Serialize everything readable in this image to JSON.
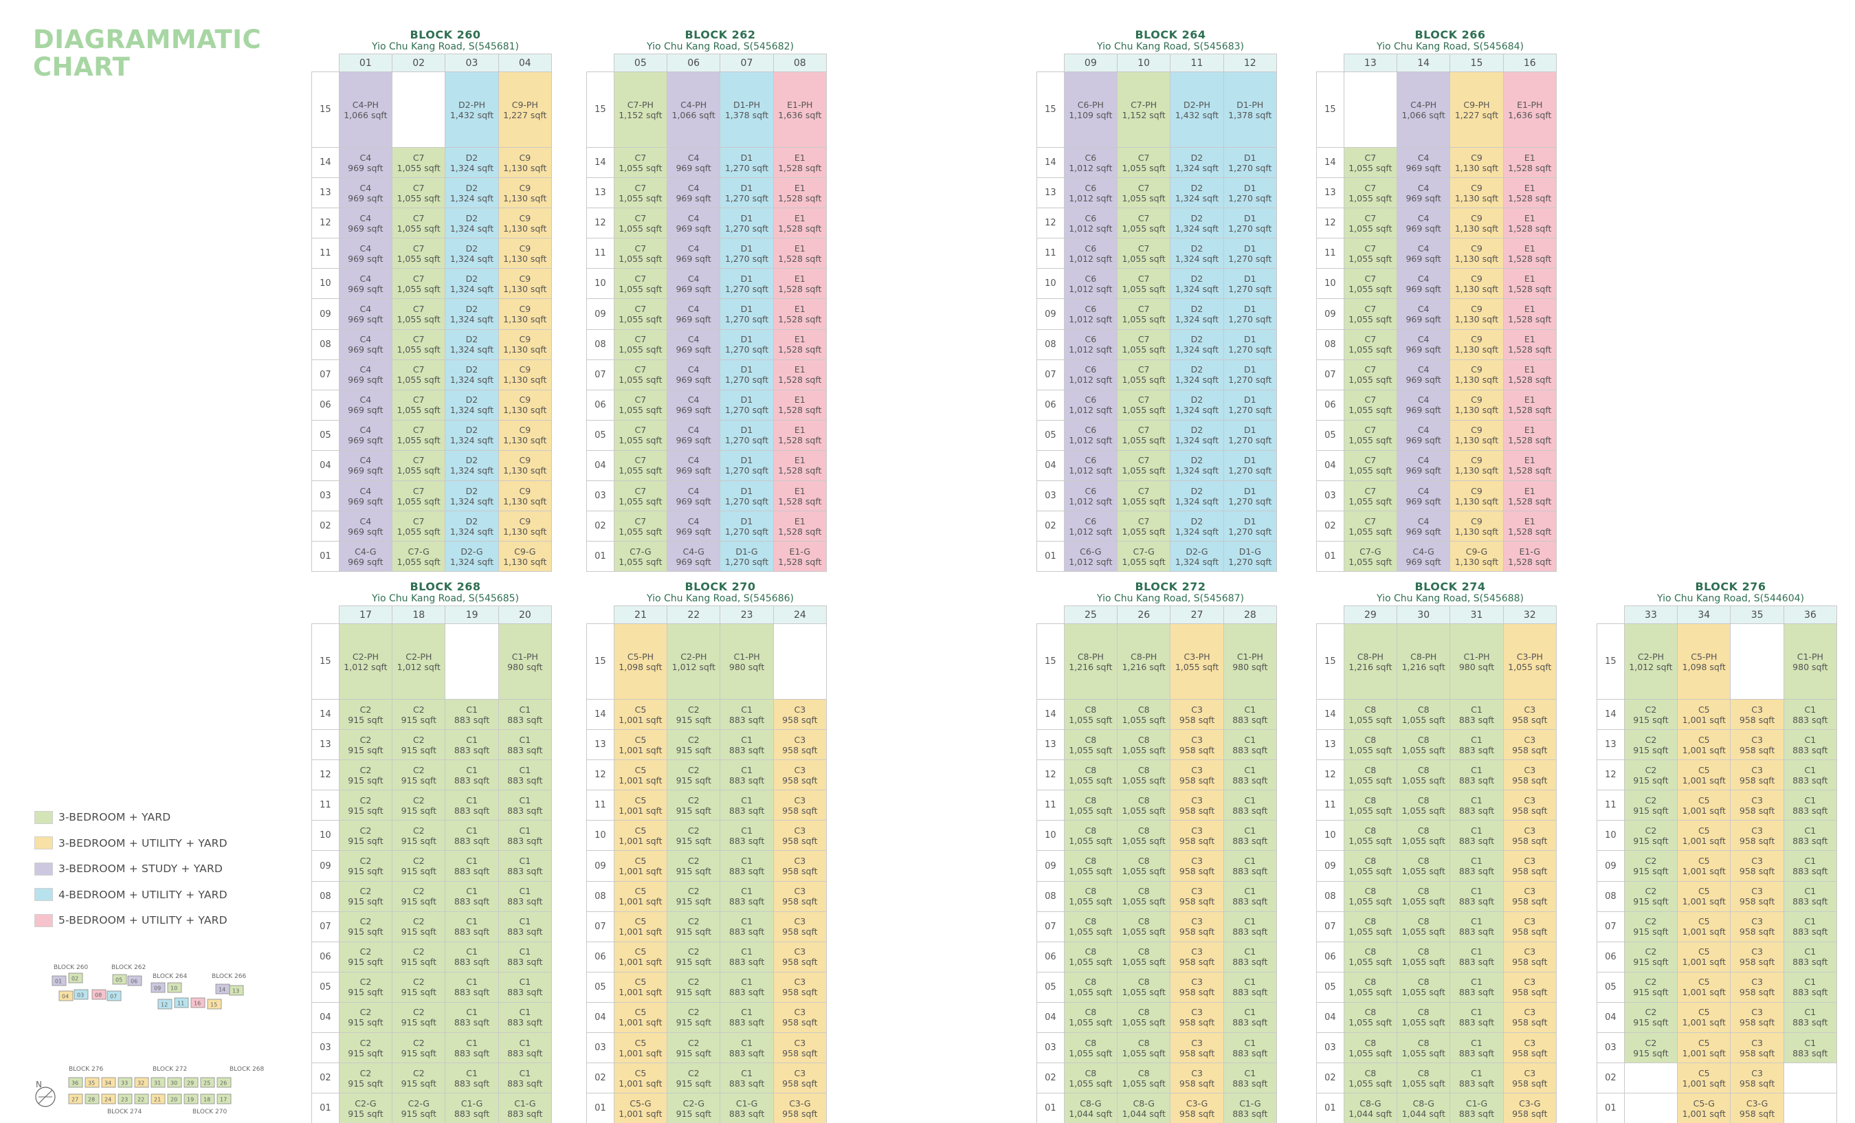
{
  "title_lines": [
    "DIAGRAMMATIC",
    "CHART"
  ],
  "colors": {
    "g": "#d4e4b6",
    "y": "#f8e1a4",
    "p": "#cdc8e0",
    "b": "#b8e2ee",
    "r": "#f6c3cc"
  },
  "legend": [
    {
      "color": "g",
      "label": "3-BEDROOM + YARD"
    },
    {
      "color": "y",
      "label": "3-BEDROOM + UTILITY + YARD"
    },
    {
      "color": "p",
      "label": "3-BEDROOM + STUDY + YARD"
    },
    {
      "color": "b",
      "label": "4-BEDROOM + UTILITY + YARD"
    },
    {
      "color": "r",
      "label": "5-BEDROOM + UTILITY + YARD"
    }
  ],
  "floors": [
    "15",
    "14",
    "13",
    "12",
    "11",
    "10",
    "09",
    "08",
    "07",
    "06",
    "05",
    "04",
    "03",
    "02",
    "01"
  ],
  "blocks": [
    {
      "name": "BLOCK 260",
      "address": "Yio Chu Kang Road, S(545681)",
      "columns": [
        {
          "no": "01",
          "color": "p",
          "ph": [
            "C4-PH",
            "1,066 sqft"
          ],
          "typ": [
            "C4",
            "969 sqft"
          ],
          "gf": [
            "C4-G",
            "969 sqft"
          ]
        },
        {
          "no": "02",
          "color": "g",
          "ph": null,
          "typ": [
            "C7",
            "1,055 sqft"
          ],
          "gf": [
            "C7-G",
            "1,055 sqft"
          ]
        },
        {
          "no": "03",
          "color": "b",
          "ph": [
            "D2-PH",
            "1,432 sqft"
          ],
          "typ": [
            "D2",
            "1,324 sqft"
          ],
          "gf": [
            "D2-G",
            "1,324 sqft"
          ]
        },
        {
          "no": "04",
          "color": "y",
          "ph": [
            "C9-PH",
            "1,227 sqft"
          ],
          "typ": [
            "C9",
            "1,130 sqft"
          ],
          "gf": [
            "C9-G",
            "1,130 sqft"
          ]
        }
      ]
    },
    {
      "name": "BLOCK 262",
      "address": "Yio Chu Kang Road, S(545682)",
      "columns": [
        {
          "no": "05",
          "color": "g",
          "ph": [
            "C7-PH",
            "1,152 sqft"
          ],
          "typ": [
            "C7",
            "1,055 sqft"
          ],
          "gf": [
            "C7-G",
            "1,055 sqft"
          ]
        },
        {
          "no": "06",
          "color": "p",
          "ph": [
            "C4-PH",
            "1,066 sqft"
          ],
          "typ": [
            "C4",
            "969 sqft"
          ],
          "gf": [
            "C4-G",
            "969 sqft"
          ]
        },
        {
          "no": "07",
          "color": "b",
          "ph": [
            "D1-PH",
            "1,378 sqft"
          ],
          "typ": [
            "D1",
            "1,270 sqft"
          ],
          "gf": [
            "D1-G",
            "1,270 sqft"
          ]
        },
        {
          "no": "08",
          "color": "r",
          "ph": [
            "E1-PH",
            "1,636 sqft"
          ],
          "typ": [
            "E1",
            "1,528 sqft"
          ],
          "gf": [
            "E1-G",
            "1,528 sqft"
          ]
        }
      ]
    },
    {
      "name": "BLOCK 264",
      "address": "Yio Chu Kang Road, S(545683)",
      "columns": [
        {
          "no": "09",
          "color": "p",
          "ph": [
            "C6-PH",
            "1,109 sqft"
          ],
          "typ": [
            "C6",
            "1,012 sqft"
          ],
          "gf": [
            "C6-G",
            "1,012 sqft"
          ]
        },
        {
          "no": "10",
          "color": "g",
          "ph": [
            "C7-PH",
            "1,152 sqft"
          ],
          "typ": [
            "C7",
            "1,055 sqft"
          ],
          "gf": [
            "C7-G",
            "1,055 sqft"
          ]
        },
        {
          "no": "11",
          "color": "b",
          "ph": [
            "D2-PH",
            "1,432 sqft"
          ],
          "typ": [
            "D2",
            "1,324 sqft"
          ],
          "gf": [
            "D2-G",
            "1,324 sqft"
          ]
        },
        {
          "no": "12",
          "color": "b",
          "ph": [
            "D1-PH",
            "1,378 sqft"
          ],
          "typ": [
            "D1",
            "1,270 sqft"
          ],
          "gf": [
            "D1-G",
            "1,270 sqft"
          ]
        }
      ]
    },
    {
      "name": "BLOCK 266",
      "address": "Yio Chu Kang Road, S(545684)",
      "columns": [
        {
          "no": "13",
          "color": "g",
          "ph": null,
          "typ": [
            "C7",
            "1,055 sqft"
          ],
          "gf": [
            "C7-G",
            "1,055 sqft"
          ]
        },
        {
          "no": "14",
          "color": "p",
          "ph": [
            "C4-PH",
            "1,066 sqft"
          ],
          "typ": [
            "C4",
            "969 sqft"
          ],
          "gf": [
            "C4-G",
            "969 sqft"
          ]
        },
        {
          "no": "15",
          "color": "y",
          "ph": [
            "C9-PH",
            "1,227 sqft"
          ],
          "typ": [
            "C9",
            "1,130 sqft"
          ],
          "gf": [
            "C9-G",
            "1,130 sqft"
          ]
        },
        {
          "no": "16",
          "color": "r",
          "ph": [
            "E1-PH",
            "1,636 sqft"
          ],
          "typ": [
            "E1",
            "1,528 sqft"
          ],
          "gf": [
            "E1-G",
            "1,528 sqft"
          ]
        }
      ]
    },
    {
      "name": "BLOCK 268",
      "address": "Yio Chu Kang Road, S(545685)",
      "columns": [
        {
          "no": "17",
          "color": "g",
          "ph": [
            "C2-PH",
            "1,012 sqft"
          ],
          "typ": [
            "C2",
            "915 sqft"
          ],
          "gf": [
            "C2-G",
            "915 sqft"
          ]
        },
        {
          "no": "18",
          "color": "g",
          "ph": [
            "C2-PH",
            "1,012 sqft"
          ],
          "typ": [
            "C2",
            "915 sqft"
          ],
          "gf": [
            "C2-G",
            "915 sqft"
          ]
        },
        {
          "no": "19",
          "color": "g",
          "ph": null,
          "typ": [
            "C1",
            "883 sqft"
          ],
          "gf": [
            "C1-G",
            "883 sqft"
          ]
        },
        {
          "no": "20",
          "color": "g",
          "ph": [
            "C1-PH",
            "980 sqft"
          ],
          "typ": [
            "C1",
            "883 sqft"
          ],
          "gf": [
            "C1-G",
            "883 sqft"
          ]
        }
      ]
    },
    {
      "name": "BLOCK 270",
      "address": "Yio Chu Kang Road, S(545686)",
      "columns": [
        {
          "no": "21",
          "color": "y",
          "ph": [
            "C5-PH",
            "1,098 sqft"
          ],
          "typ": [
            "C5",
            "1,001 sqft"
          ],
          "gf": [
            "C5-G",
            "1,001 sqft"
          ]
        },
        {
          "no": "22",
          "color": "g",
          "ph": [
            "C2-PH",
            "1,012 sqft"
          ],
          "typ": [
            "C2",
            "915 sqft"
          ],
          "gf": [
            "C2-G",
            "915 sqft"
          ]
        },
        {
          "no": "23",
          "color": "g",
          "ph": [
            "C1-PH",
            "980 sqft"
          ],
          "typ": [
            "C1",
            "883 sqft"
          ],
          "gf": [
            "C1-G",
            "883 sqft"
          ]
        },
        {
          "no": "24",
          "color": "y",
          "ph": null,
          "typ": [
            "C3",
            "958 sqft"
          ],
          "gf": [
            "C3-G",
            "958 sqft"
          ]
        }
      ]
    },
    {
      "name": "BLOCK 272",
      "address": "Yio Chu Kang Road, S(545687)",
      "columns": [
        {
          "no": "25",
          "color": "g",
          "ph": [
            "C8-PH",
            "1,216 sqft"
          ],
          "typ": [
            "C8",
            "1,055 sqft"
          ],
          "gf": [
            "C8-G",
            "1,044 sqft"
          ]
        },
        {
          "no": "26",
          "color": "g",
          "ph": [
            "C8-PH",
            "1,216 sqft"
          ],
          "typ": [
            "C8",
            "1,055 sqft"
          ],
          "gf": [
            "C8-G",
            "1,044 sqft"
          ]
        },
        {
          "no": "27",
          "color": "y",
          "ph": [
            "C3-PH",
            "1,055 sqft"
          ],
          "typ": [
            "C3",
            "958 sqft"
          ],
          "gf": [
            "C3-G",
            "958 sqft"
          ]
        },
        {
          "no": "28",
          "color": "g",
          "ph": [
            "C1-PH",
            "980 sqft"
          ],
          "typ": [
            "C1",
            "883 sqft"
          ],
          "gf": [
            "C1-G",
            "883 sqft"
          ]
        }
      ]
    },
    {
      "name": "BLOCK 274",
      "address": "Yio Chu Kang Road, S(545688)",
      "columns": [
        {
          "no": "29",
          "color": "g",
          "ph": [
            "C8-PH",
            "1,216 sqft"
          ],
          "typ": [
            "C8",
            "1,055 sqft"
          ],
          "gf": [
            "C8-G",
            "1,044 sqft"
          ]
        },
        {
          "no": "30",
          "color": "g",
          "ph": [
            "C8-PH",
            "1,216 sqft"
          ],
          "typ": [
            "C8",
            "1,055 sqft"
          ],
          "gf": [
            "C8-G",
            "1,044 sqft"
          ]
        },
        {
          "no": "31",
          "color": "g",
          "ph": [
            "C1-PH",
            "980 sqft"
          ],
          "typ": [
            "C1",
            "883 sqft"
          ],
          "gf": [
            "C1-G",
            "883 sqft"
          ]
        },
        {
          "no": "32",
          "color": "y",
          "ph": [
            "C3-PH",
            "1,055 sqft"
          ],
          "typ": [
            "C3",
            "958 sqft"
          ],
          "gf": [
            "C3-G",
            "958 sqft"
          ]
        }
      ]
    },
    {
      "name": "BLOCK 276",
      "address": "Yio Chu Kang Road, S(544604)",
      "columns": [
        {
          "no": "33",
          "color": "g",
          "ph": [
            "C2-PH",
            "1,012 sqft"
          ],
          "typ": [
            "C2",
            "915 sqft"
          ],
          "gf": null,
          "gf_override": {
            "02": null
          }
        },
        {
          "no": "34",
          "color": "y",
          "ph": [
            "C5-PH",
            "1,098 sqft"
          ],
          "typ": [
            "C5",
            "1,001 sqft"
          ],
          "gf": [
            "C5-G",
            "1,001 sqft"
          ]
        },
        {
          "no": "35",
          "color": "y",
          "ph": null,
          "typ": [
            "C3",
            "958 sqft"
          ],
          "gf": [
            "C3-G",
            "958 sqft"
          ]
        },
        {
          "no": "36",
          "color": "g",
          "ph": [
            "C1-PH",
            "980 sqft"
          ],
          "typ": [
            "C1",
            "883 sqft"
          ],
          "gf": null,
          "gf_override": {
            "02": null
          }
        }
      ]
    }
  ],
  "keyplan": {
    "compass": "N",
    "labels": [
      "BLOCK 260",
      "BLOCK 262",
      "BLOCK 264",
      "BLOCK 266",
      "BLOCK 276",
      "BLOCK 272",
      "BLOCK 268",
      "BLOCK 274",
      "BLOCK 270"
    ]
  }
}
